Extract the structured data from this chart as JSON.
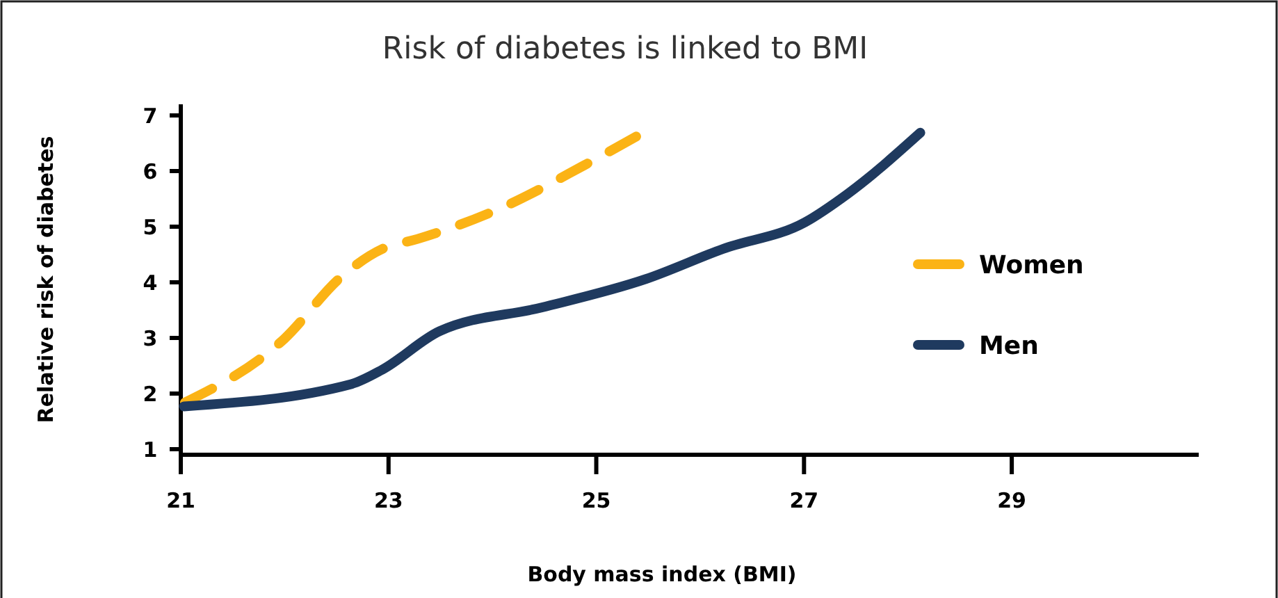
{
  "chart_data": {
    "type": "line",
    "title": "Risk of diabetes is linked to BMI",
    "xlabel": "Body mass index (BMI)",
    "ylabel": "Relative risk of diabetes",
    "xlim": [
      21,
      30.8
    ],
    "xticks": [
      21,
      23,
      25,
      27,
      29
    ],
    "ylim": [
      0.9,
      7.2
    ],
    "yticks": [
      1,
      2,
      3,
      4,
      5,
      6,
      7
    ],
    "legend": "right",
    "grid": false,
    "series": [
      {
        "name": "Women",
        "color": "#fbb315",
        "line_style": "dashed",
        "x": [
          21.04,
          22.0,
          22.54,
          22.94,
          23.28,
          24.09,
          24.88,
          25.45
        ],
        "values": [
          1.84,
          2.99,
          4.09,
          4.6,
          4.78,
          5.34,
          6.1,
          6.69
        ]
      },
      {
        "name": "Men",
        "color": "#1f3a5f",
        "line_style": "solid",
        "x": [
          21.03,
          22.64,
          22.94,
          23.49,
          24.48,
          25.48,
          26.22,
          27.01,
          27.42,
          28.12
        ],
        "values": [
          1.77,
          2.17,
          2.43,
          3.12,
          3.55,
          4.06,
          4.6,
          5.08,
          5.59,
          6.69
        ]
      }
    ]
  }
}
